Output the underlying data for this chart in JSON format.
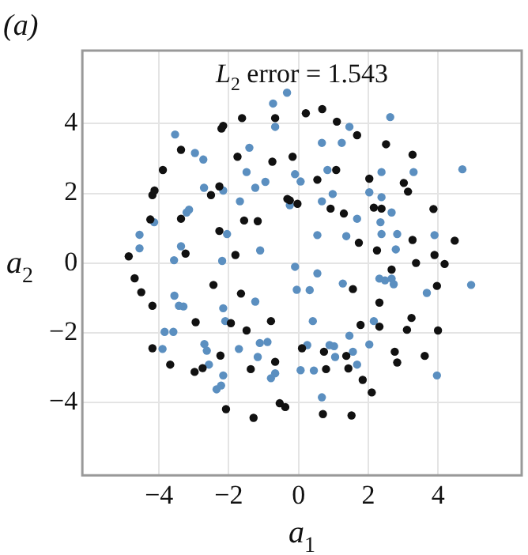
{
  "chart_data": {
    "type": "scatter",
    "title": "(a)",
    "xlabel": "a$_{1}$",
    "ylabel": "a$_{2}$",
    "annotations": [
      "L$_{2}$ error = 1.543"
    ],
    "xlim": [
      -6.2,
      6.4
    ],
    "ylim": [
      -6.1,
      6.1
    ],
    "xticks": [
      {
        "value": -4,
        "label": "−4"
      },
      {
        "value": -2,
        "label": "−2"
      },
      0,
      2,
      4
    ],
    "yticks": [
      {
        "value": -4,
        "label": "−4"
      },
      {
        "value": -2,
        "label": "−2"
      },
      0,
      2,
      4
    ],
    "grid": true,
    "legend": false,
    "marker": "circle",
    "series": [
      {
        "color": "#111111",
        "x": [
          -4.87,
          -4.7,
          -4.51,
          -4.25,
          -4.19,
          -4.13,
          -4.19,
          -4.19,
          -3.89,
          -3.68,
          -3.37,
          -3.37,
          -3.24,
          -2.95,
          -2.98,
          -2.75,
          -2.51,
          -2.44,
          -2.27,
          -2.27,
          -2.21,
          -2.16,
          -2.24,
          -2.08,
          -1.94,
          -1.81,
          -1.75,
          -1.62,
          -1.65,
          -1.56,
          -1.49,
          -1.37,
          -1.29,
          -1.17,
          -0.79,
          -0.75,
          -0.67,
          -0.67,
          -0.54,
          -0.38,
          -0.32,
          -0.25,
          -0.17,
          -0.03,
          0.21,
          0.1,
          0.54,
          0.68,
          0.7,
          0.73,
          0.79,
          0.92,
          1.08,
          1.1,
          1.3,
          1.37,
          1.43,
          1.52,
          1.56,
          1.68,
          1.73,
          1.78,
          1.84,
          2.03,
          2.16,
          2.1,
          2.25,
          2.32,
          2.32,
          2.51,
          2.38,
          2.67,
          2.76,
          2.83,
          3.02,
          3.14,
          3.27,
          3.11,
          3.24,
          3.27,
          3.37,
          3.62,
          3.87,
          3.97,
          4.0,
          3.9,
          4.19,
          4.48
        ],
        "values": [
          0.19,
          -0.44,
          -0.84,
          1.25,
          1.95,
          2.08,
          -1.23,
          -2.45,
          2.67,
          -2.92,
          1.27,
          3.25,
          0.27,
          -1.7,
          -3.13,
          -3.02,
          1.95,
          -0.63,
          2.2,
          0.92,
          3.86,
          3.94,
          -2.66,
          -4.2,
          -1.73,
          0.23,
          3.05,
          4.16,
          -0.88,
          1.22,
          -1.94,
          -3.05,
          -4.45,
          1.2,
          -1.67,
          2.91,
          4.16,
          -2.84,
          -4.03,
          -4.14,
          1.84,
          1.8,
          3.05,
          1.7,
          4.3,
          -2.45,
          2.39,
          4.42,
          -4.34,
          -2.55,
          -3.05,
          1.56,
          2.67,
          4.06,
          1.42,
          -2.67,
          -3.03,
          -4.38,
          -0.75,
          3.67,
          0.58,
          -1.78,
          -3.36,
          2.42,
          1.59,
          -3.72,
          0.36,
          -1.14,
          -1.83,
          3.41,
          1.56,
          -0.19,
          -2.55,
          -2.86,
          2.3,
          2.05,
          3.11,
          -1.92,
          -1.58,
          0.66,
          0.0,
          -2.67,
          1.55,
          -0.66,
          -1.94,
          0.23,
          -0.03,
          0.64
        ]
      },
      {
        "color": "#5b8fc0",
        "x": [
          -4.56,
          -4.56,
          -4.14,
          -3.9,
          -3.84,
          -3.59,
          -3.54,
          -3.57,
          -3.56,
          -3.43,
          -3.3,
          -3.37,
          -3.21,
          -3.14,
          -2.97,
          -2.73,
          -2.71,
          -2.7,
          -2.63,
          -2.57,
          -2.35,
          -2.22,
          -2.16,
          -2.19,
          -2.16,
          -2.1,
          -2.05,
          -2.16,
          -1.68,
          -1.71,
          -1.49,
          -1.41,
          -1.24,
          -1.1,
          -1.24,
          -1.11,
          -1.17,
          -0.95,
          -0.89,
          -0.79,
          -0.67,
          -0.73,
          -0.67,
          -0.33,
          -0.25,
          -0.1,
          0.06,
          -0.1,
          -0.05,
          0.06,
          0.32,
          0.44,
          0.25,
          0.41,
          0.54,
          0.54,
          0.67,
          0.67,
          0.67,
          0.83,
          0.89,
          0.98,
          1.02,
          1.05,
          1.24,
          1.27,
          1.37,
          1.46,
          1.46,
          1.56,
          1.68,
          1.68,
          2.03,
          2.03,
          2.16,
          2.35,
          2.38,
          2.38,
          2.38,
          2.32,
          2.48,
          2.63,
          2.67,
          2.67,
          2.73,
          2.79,
          2.83,
          3.3,
          3.68,
          3.9,
          3.97,
          4.7,
          4.95
        ],
        "values": [
          0.81,
          0.42,
          1.17,
          -2.47,
          -1.98,
          -1.98,
          3.69,
          0.08,
          -0.94,
          -1.23,
          -1.25,
          0.48,
          1.45,
          1.53,
          3.16,
          2.97,
          2.16,
          -2.33,
          -2.52,
          -2.92,
          -3.63,
          -3.52,
          -3.23,
          0.06,
          -1.3,
          -1.67,
          0.83,
          2.08,
          1.77,
          -2.47,
          2.61,
          3.31,
          2.16,
          0.36,
          -1.11,
          -2.3,
          -2.7,
          2.33,
          -2.27,
          -3.31,
          -3.17,
          4.58,
          3.91,
          4.89,
          1.66,
          2.55,
          2.34,
          -0.11,
          -0.77,
          -3.08,
          -0.78,
          -3.09,
          -2.36,
          -1.67,
          -0.3,
          0.8,
          3.45,
          1.77,
          -3.86,
          2.67,
          -2.36,
          1.98,
          -2.39,
          -2.7,
          3.45,
          -0.59,
          0.77,
          3.91,
          -2.09,
          -2.55,
          -2.92,
          1.27,
          2.03,
          -2.34,
          -1.67,
          1.17,
          0.83,
          1.89,
          2.61,
          -0.45,
          -0.5,
          4.19,
          1.45,
          -0.45,
          -0.61,
          0.39,
          0.83,
          2.61,
          -0.86,
          0.8,
          -3.23,
          2.69,
          -0.63
        ]
      }
    ]
  }
}
